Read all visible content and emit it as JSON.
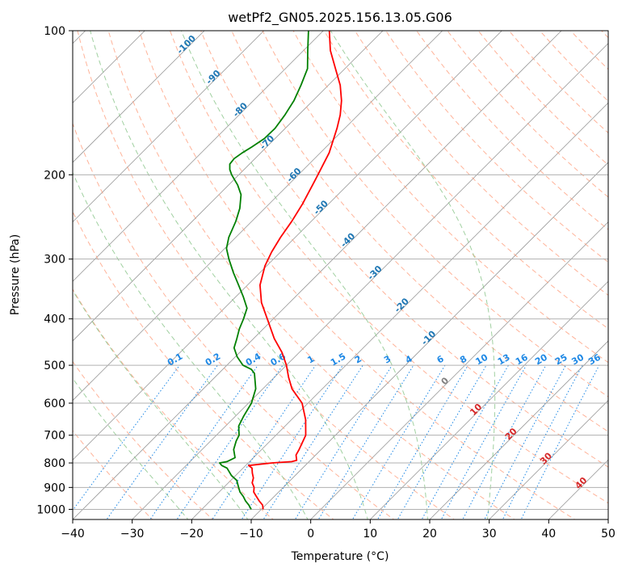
{
  "chart_data": {
    "type": "line",
    "title": "wetPf2_GN05.2025.156.13.05.G06",
    "xlabel": "Temperature (°C)",
    "ylabel": "Pressure (hPa)",
    "xlim": [
      -40,
      50
    ],
    "ylim": [
      1050,
      100
    ],
    "y_scale": "log",
    "grid": true,
    "x_ticks": [
      -40,
      -30,
      -20,
      -10,
      0,
      10,
      20,
      30,
      40,
      50
    ],
    "y_ticks": [
      100,
      200,
      300,
      400,
      500,
      600,
      700,
      800,
      900,
      1000
    ],
    "series": [
      {
        "role": "temperature",
        "color": "#ff0000",
        "points": [
          [
            1000,
            -9.7
          ],
          [
            980,
            -10.5
          ],
          [
            960,
            -11.8
          ],
          [
            940,
            -13.0
          ],
          [
            920,
            -14.2
          ],
          [
            900,
            -14.9
          ],
          [
            880,
            -16.0
          ],
          [
            860,
            -16.6
          ],
          [
            840,
            -17.6
          ],
          [
            820,
            -18.5
          ],
          [
            810,
            -19.5
          ],
          [
            800,
            -16.0
          ],
          [
            795,
            -12.9
          ],
          [
            790,
            -12.3
          ],
          [
            770,
            -13.3
          ],
          [
            750,
            -13.7
          ],
          [
            700,
            -15.0
          ],
          [
            650,
            -17.6
          ],
          [
            600,
            -21.0
          ],
          [
            560,
            -25.1
          ],
          [
            530,
            -27.6
          ],
          [
            500,
            -30.0
          ],
          [
            470,
            -32.9
          ],
          [
            440,
            -36.5
          ],
          [
            400,
            -41.0
          ],
          [
            370,
            -44.7
          ],
          [
            340,
            -47.9
          ],
          [
            310,
            -50.3
          ],
          [
            290,
            -51.5
          ],
          [
            270,
            -52.5
          ],
          [
            250,
            -53.3
          ],
          [
            230,
            -54.4
          ],
          [
            210,
            -55.9
          ],
          [
            200,
            -56.7
          ],
          [
            180,
            -58.5
          ],
          [
            160,
            -61.3
          ],
          [
            150,
            -63.0
          ],
          [
            140,
            -65.2
          ],
          [
            130,
            -68.0
          ],
          [
            120,
            -71.6
          ],
          [
            110,
            -75.5
          ],
          [
            100,
            -79.0
          ]
        ]
      },
      {
        "role": "dewpoint",
        "color": "#008000",
        "points": [
          [
            1000,
            -11.7
          ],
          [
            980,
            -12.8
          ],
          [
            960,
            -14.1
          ],
          [
            940,
            -15.2
          ],
          [
            920,
            -16.5
          ],
          [
            900,
            -17.5
          ],
          [
            870,
            -19.0
          ],
          [
            850,
            -20.7
          ],
          [
            820,
            -22.7
          ],
          [
            810,
            -24.0
          ],
          [
            800,
            -24.8
          ],
          [
            795,
            -23.8
          ],
          [
            780,
            -23.1
          ],
          [
            750,
            -24.7
          ],
          [
            720,
            -25.7
          ],
          [
            700,
            -26.2
          ],
          [
            670,
            -27.8
          ],
          [
            640,
            -28.6
          ],
          [
            600,
            -29.5
          ],
          [
            560,
            -31.2
          ],
          [
            520,
            -34.0
          ],
          [
            510,
            -35.2
          ],
          [
            500,
            -37.3
          ],
          [
            480,
            -39.7
          ],
          [
            460,
            -41.7
          ],
          [
            440,
            -42.8
          ],
          [
            420,
            -44.0
          ],
          [
            400,
            -45.0
          ],
          [
            380,
            -46.2
          ],
          [
            360,
            -48.7
          ],
          [
            340,
            -51.5
          ],
          [
            320,
            -54.5
          ],
          [
            300,
            -57.5
          ],
          [
            285,
            -59.7
          ],
          [
            270,
            -61.2
          ],
          [
            250,
            -62.7
          ],
          [
            235,
            -64.2
          ],
          [
            220,
            -66.3
          ],
          [
            210,
            -68.5
          ],
          [
            200,
            -71.2
          ],
          [
            195,
            -72.4
          ],
          [
            190,
            -73.3
          ],
          [
            185,
            -73.5
          ],
          [
            180,
            -73.1
          ],
          [
            175,
            -72.5
          ],
          [
            168,
            -71.8
          ],
          [
            160,
            -71.7
          ],
          [
            150,
            -72.3
          ],
          [
            140,
            -73.2
          ],
          [
            130,
            -74.6
          ],
          [
            120,
            -76.3
          ],
          [
            110,
            -79.3
          ],
          [
            100,
            -82.5
          ]
        ]
      }
    ],
    "guide_lines": {
      "dry_adiabat_color": "#ff9977",
      "moist_adiabat_color": "#88c488",
      "mixing_ratio_color": "#1e88e5",
      "isotherm_color": "#999999"
    },
    "mixing_ratio_labels": [
      "0.1",
      "0.2",
      "0.4",
      "0.6",
      "1",
      "1.5",
      "2",
      "3",
      "4",
      "6",
      "8",
      "10",
      "13",
      "16",
      "20",
      "25",
      "30",
      "36"
    ],
    "mixing_ratio_values": [
      0.1,
      0.2,
      0.4,
      0.6,
      1,
      1.5,
      2,
      3,
      4,
      6,
      8,
      10,
      13,
      16,
      20,
      25,
      30,
      36
    ],
    "cold_isotherm_labels": [
      "-100",
      "-90",
      "-80",
      "-70",
      "-60",
      "-50",
      "-40",
      "-30",
      "-20",
      "-10"
    ],
    "cold_isotherm_values": [
      -100,
      -90,
      -80,
      -70,
      -60,
      -50,
      -40,
      -30,
      -20,
      -10
    ],
    "zero_isotherm_label": "0",
    "warm_isotherm_labels": [
      "10",
      "20",
      "30",
      "40"
    ],
    "warm_isotherm_values": [
      10,
      20,
      30,
      40
    ],
    "cold_label_color": "#1f77b4",
    "mixing_label_color": "#1e88e5",
    "zero_label_color": "#808080",
    "warm_label_color": "#d62728"
  }
}
